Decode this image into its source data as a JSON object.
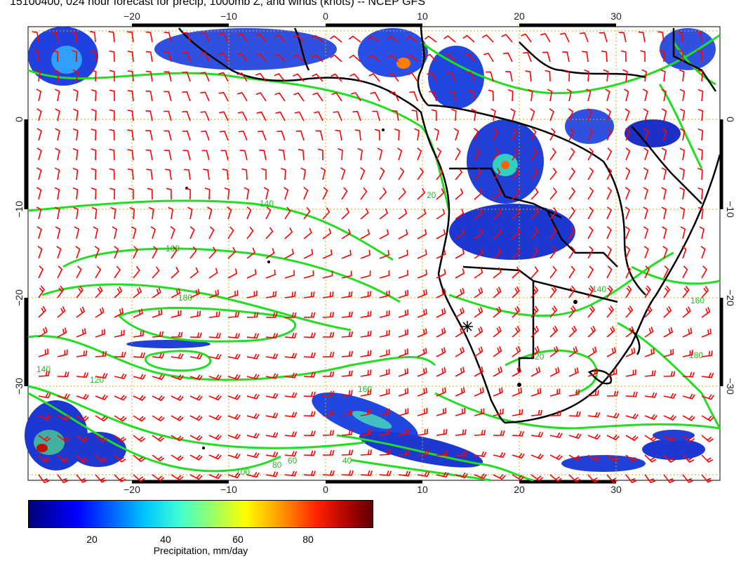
{
  "title": "15100400, 024 hour forecast for precip, 1000mb Z, and winds (knots) -- NCEP GFS",
  "axes": {
    "lon_labels": [
      "−20",
      "−10",
      "0",
      "10",
      "20",
      "30"
    ],
    "lat_labels": [
      "0",
      "−10",
      "−20",
      "−30"
    ]
  },
  "contour_labels": [
    "140",
    "160",
    "180",
    "140",
    "120",
    "100",
    "80",
    "60",
    "40",
    "20",
    "160",
    "180",
    "20",
    "140",
    "160"
  ],
  "colors": {
    "wind_barbs": "#ff0000",
    "contours": "#22dd22",
    "gridlines": "#ddaa00",
    "coastlines": "#000000"
  },
  "colorbar": {
    "ticks": [
      "20",
      "40",
      "60",
      "80"
    ],
    "label": "Precipitation, mm/day"
  }
}
